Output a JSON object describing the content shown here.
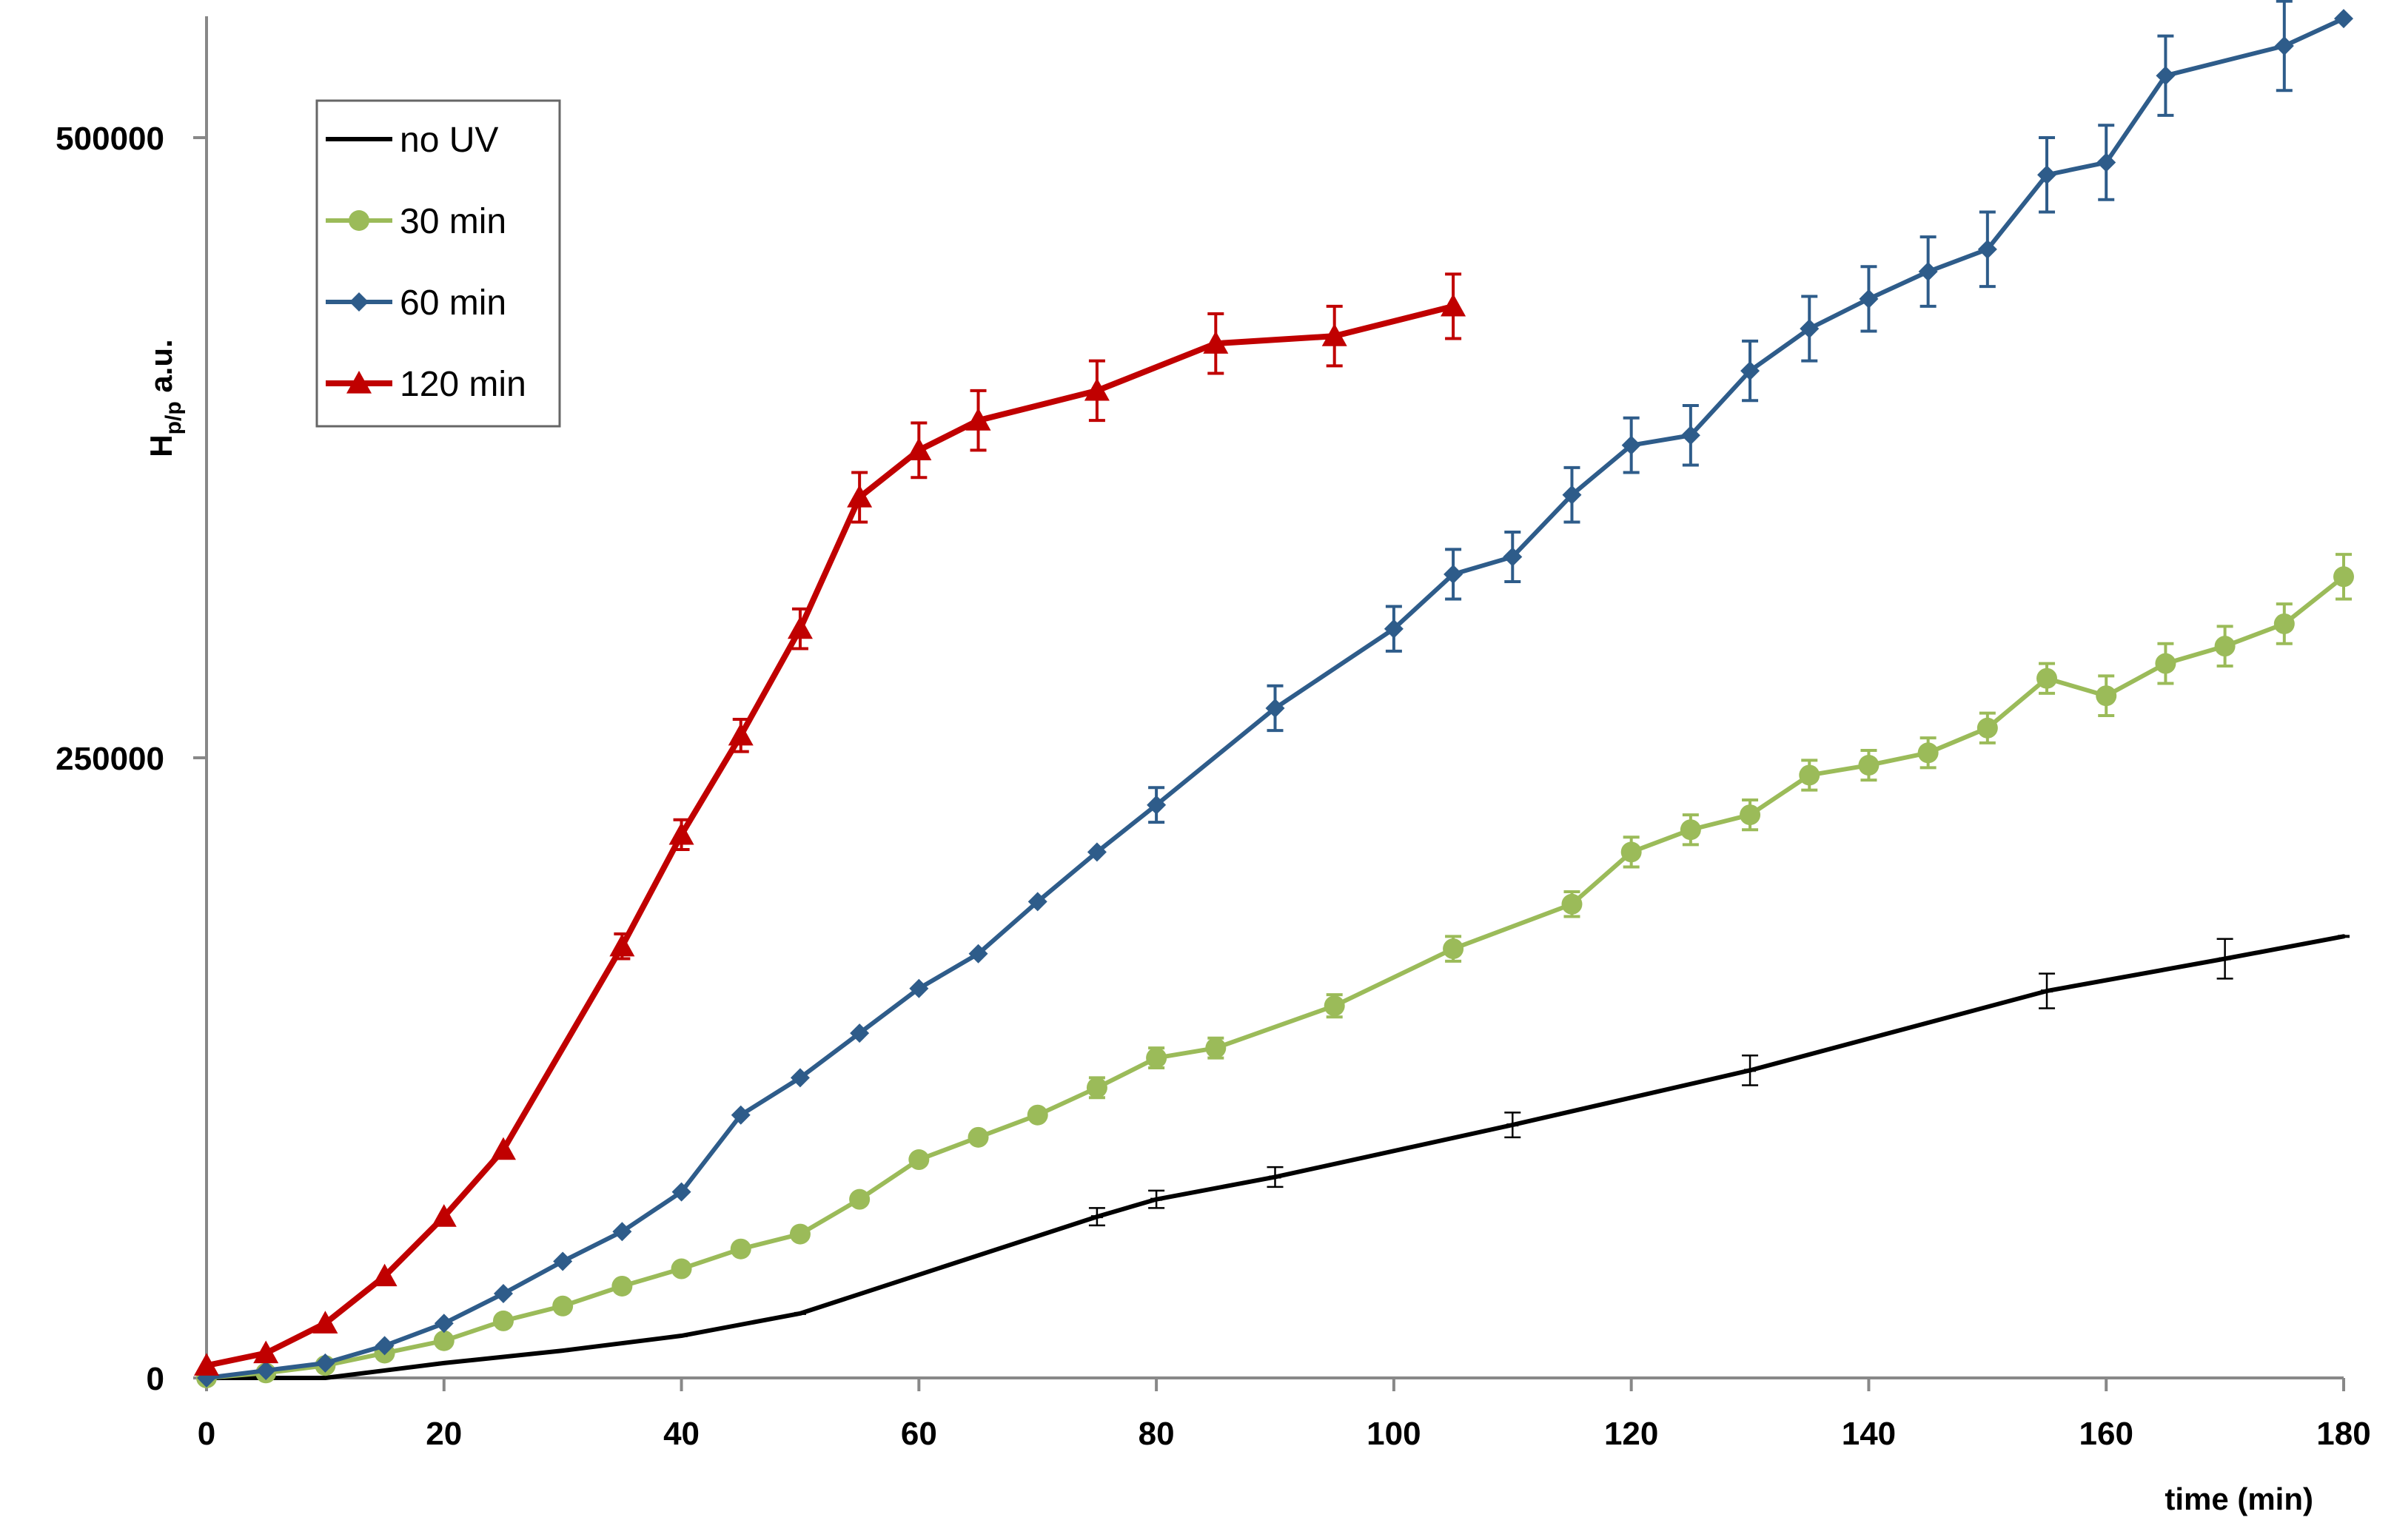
{
  "chart_data": {
    "type": "line",
    "title": "",
    "xlabel": "time (min)",
    "ylabel": {
      "main": "H",
      "sub": "p/p",
      "suffix": " a.u."
    },
    "xlim": [
      0,
      180
    ],
    "ylim": [
      0,
      550000
    ],
    "xticks": [
      0,
      20,
      40,
      60,
      80,
      100,
      120,
      140,
      160,
      180
    ],
    "yticks": [
      0,
      250000,
      500000
    ],
    "grid": false,
    "legend_position": "top-left",
    "series": [
      {
        "name": "no UV",
        "color": "#000000",
        "marker": "dash",
        "x": [
          0,
          5,
          10,
          15,
          20,
          30,
          40,
          50,
          75,
          80,
          90,
          110,
          130,
          155,
          170,
          180
        ],
        "y": [
          0,
          0,
          0,
          3000,
          6000,
          11000,
          17000,
          26000,
          65000,
          72000,
          81000,
          102000,
          124000,
          156000,
          169000,
          178000
        ],
        "err": [
          0,
          0,
          0,
          0,
          0,
          0,
          0,
          0,
          3500,
          3500,
          4000,
          5000,
          6000,
          7000,
          8000,
          0
        ]
      },
      {
        "name": "30 min",
        "color": "#9BBB59",
        "marker": "circle",
        "x": [
          0,
          5,
          10,
          15,
          20,
          25,
          30,
          35,
          40,
          45,
          50,
          55,
          60,
          65,
          70,
          75,
          80,
          85,
          95,
          105,
          115,
          120,
          125,
          130,
          135,
          140,
          145,
          150,
          155,
          160,
          165,
          170,
          175,
          180
        ],
        "y": [
          0,
          2000,
          5000,
          10000,
          15000,
          23000,
          29000,
          37000,
          44000,
          52000,
          58000,
          72000,
          88000,
          97000,
          106000,
          117000,
          129000,
          133000,
          150000,
          173000,
          191000,
          212000,
          221000,
          227000,
          243000,
          247000,
          252000,
          262000,
          282000,
          275000,
          288000,
          295000,
          304000,
          323000
        ],
        "err": [
          0,
          0,
          0,
          0,
          0,
          0,
          0,
          0,
          0,
          0,
          0,
          0,
          0,
          0,
          0,
          4000,
          4000,
          4000,
          4500,
          5000,
          5000,
          6000,
          6000,
          6000,
          6000,
          6000,
          6000,
          6000,
          6000,
          8000,
          8000,
          8000,
          8000,
          9000
        ]
      },
      {
        "name": "60 min",
        "color": "#2E5C8A",
        "marker": "diamond",
        "x": [
          0,
          5,
          10,
          15,
          20,
          25,
          30,
          35,
          40,
          45,
          50,
          55,
          60,
          65,
          70,
          75,
          80,
          90,
          100,
          105,
          110,
          115,
          120,
          125,
          130,
          135,
          140,
          145,
          150,
          155,
          160,
          165,
          175,
          180
        ],
        "y": [
          0,
          3000,
          6000,
          13000,
          22000,
          34000,
          47000,
          59000,
          75000,
          106000,
          121000,
          139000,
          157000,
          171000,
          192000,
          212000,
          231000,
          270000,
          302000,
          324000,
          331000,
          356000,
          376000,
          380000,
          406000,
          423000,
          435000,
          446000,
          455000,
          485000,
          490000,
          525000,
          537000,
          548000
        ],
        "err": [
          0,
          0,
          0,
          0,
          0,
          0,
          0,
          0,
          0,
          0,
          0,
          0,
          0,
          0,
          0,
          0,
          7000,
          9000,
          9000,
          10000,
          10000,
          11000,
          11000,
          12000,
          12000,
          13000,
          13000,
          14000,
          15000,
          15000,
          15000,
          16000,
          18000,
          0
        ]
      },
      {
        "name": "120 min",
        "color": "#C00000",
        "marker": "triangle",
        "x": [
          0,
          5,
          10,
          15,
          20,
          25,
          35,
          40,
          45,
          50,
          55,
          60,
          65,
          75,
          85,
          95,
          105
        ],
        "y": [
          5000,
          10000,
          22000,
          41000,
          65000,
          92000,
          174000,
          219000,
          259000,
          302000,
          355000,
          374000,
          386000,
          398000,
          417000,
          420000,
          432000
        ],
        "err": [
          0,
          0,
          0,
          0,
          0,
          0,
          5000,
          6000,
          6500,
          8000,
          10000,
          11000,
          12000,
          12000,
          12000,
          12000,
          13000
        ]
      }
    ]
  }
}
